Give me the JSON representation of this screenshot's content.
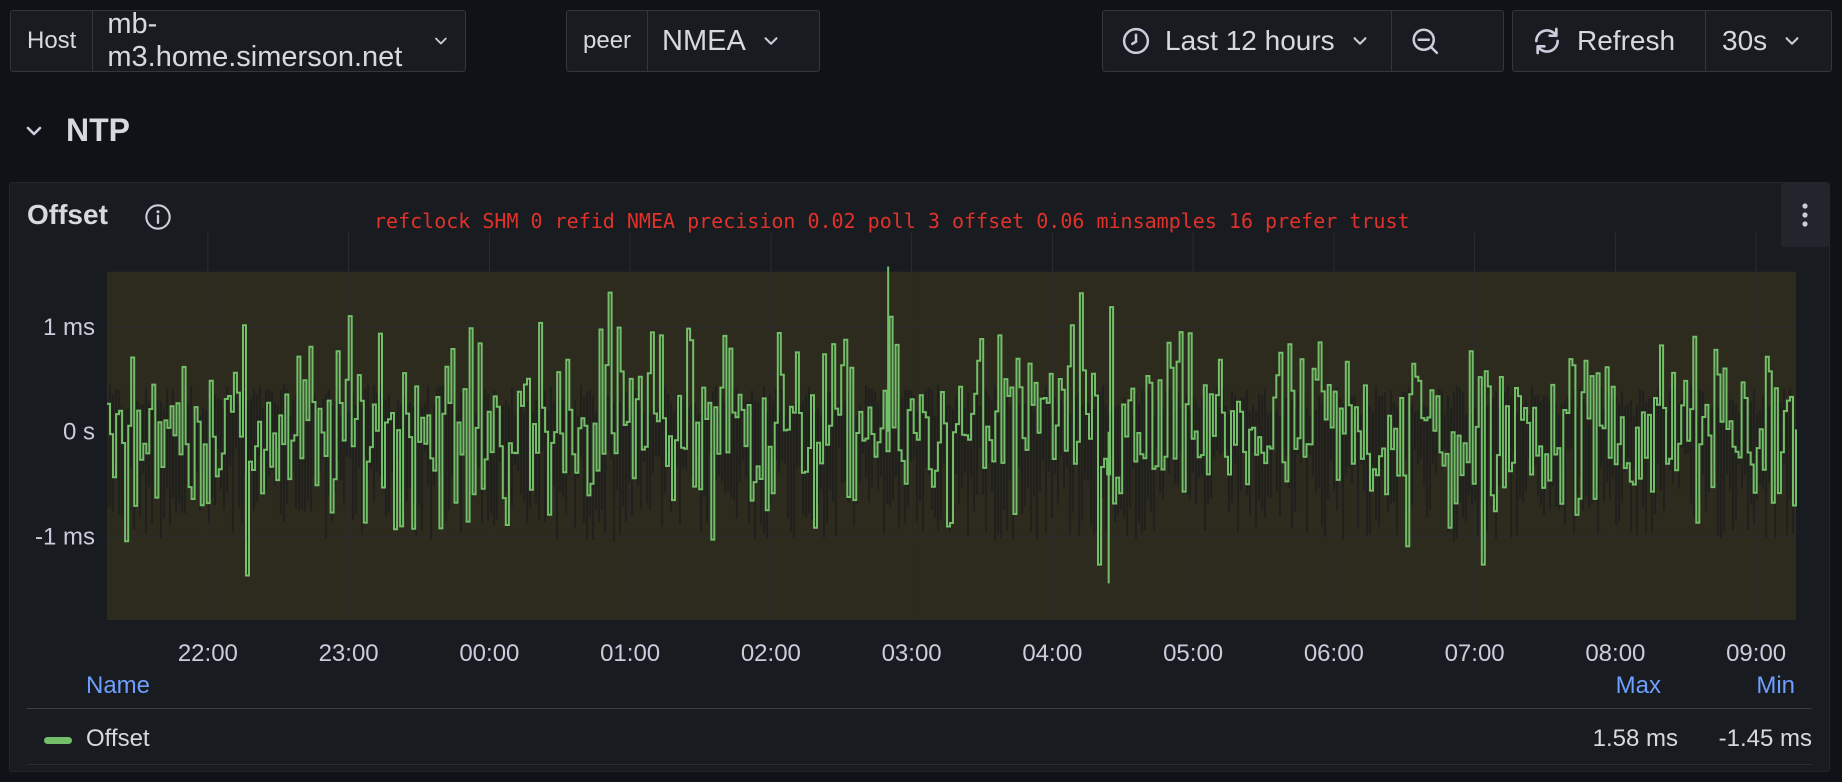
{
  "toolbar": {
    "host": {
      "label": "Host",
      "value": "mb-m3.home.simerson.net"
    },
    "peer": {
      "label": "peer",
      "value": "NMEA"
    },
    "time_range": {
      "label": "Last 12 hours",
      "icon": "clock-icon"
    },
    "zoom_out": {
      "icon": "zoom-out-icon"
    },
    "refresh": {
      "label": "Refresh",
      "icon": "refresh-icon"
    },
    "interval": {
      "value": "30s"
    }
  },
  "section": {
    "title": "NTP",
    "icon": "chevron-down-icon"
  },
  "panel": {
    "title": "Offset",
    "description": "refclock SHM 0 refid NMEA precision 0.02 poll 3 offset 0.06 minsamples 16 prefer trust",
    "menu_icon": "kebab-menu-icon",
    "info_icon": "info-icon"
  },
  "legend": {
    "headers": {
      "name": "Name",
      "max": "Max",
      "min": "Min"
    },
    "series": [
      {
        "name": "Offset",
        "max": "1.58 ms",
        "min": "-1.45 ms",
        "color": "#73bf69"
      }
    ]
  },
  "colors": {
    "series": "#73bf69",
    "description": "#e0322b",
    "legend_header": "#6e9fff",
    "fill": "#2d2a1e"
  },
  "chart_data": {
    "type": "line",
    "series": [
      {
        "name": "Offset",
        "color": "#73bf69"
      }
    ],
    "x_ticks": [
      "22:00",
      "23:00",
      "00:00",
      "01:00",
      "02:00",
      "03:00",
      "04:00",
      "05:00",
      "06:00",
      "07:00",
      "08:00",
      "09:00"
    ],
    "x_range": [
      "21:17",
      "09:17"
    ],
    "y_ticks": [
      "1 ms",
      "0 s",
      "-1 ms"
    ],
    "y_tick_values": [
      1,
      0,
      -1
    ],
    "ylim": [
      -1.8,
      1.9
    ],
    "y_unit": "ms",
    "max": 1.58,
    "min": -1.45,
    "grid": true,
    "legend_position": "bottom"
  }
}
